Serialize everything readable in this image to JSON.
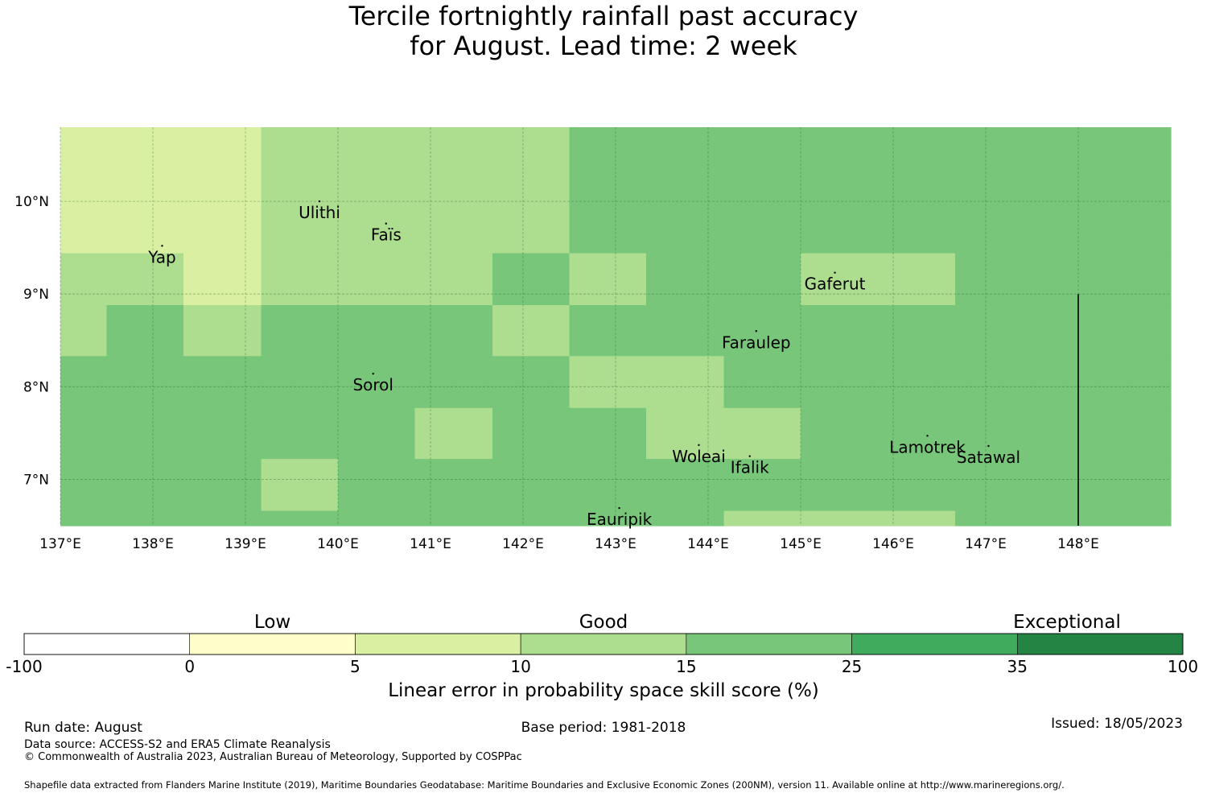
{
  "title_line1": "Tercile fortnightly rainfall past accuracy",
  "title_line2": "for August. Lead time: 2 week",
  "map": {
    "lon_range": [
      137,
      149
    ],
    "lat_range": [
      6.5,
      10.8
    ],
    "lon_ticks": [
      {
        "value": 137,
        "label": "137°E"
      },
      {
        "value": 138,
        "label": "138°E"
      },
      {
        "value": 139,
        "label": "139°E"
      },
      {
        "value": 140,
        "label": "140°E"
      },
      {
        "value": 141,
        "label": "141°E"
      },
      {
        "value": 142,
        "label": "142°E"
      },
      {
        "value": 143,
        "label": "143°E"
      },
      {
        "value": 144,
        "label": "144°E"
      },
      {
        "value": 145,
        "label": "145°E"
      },
      {
        "value": 146,
        "label": "146°E"
      },
      {
        "value": 147,
        "label": "147°E"
      },
      {
        "value": 148,
        "label": "148°E"
      }
    ],
    "lat_ticks": [
      {
        "value": 10,
        "label": "10°N"
      },
      {
        "value": 9,
        "label": "9°N"
      },
      {
        "value": 8,
        "label": "8°N"
      },
      {
        "value": 7,
        "label": "7°N"
      }
    ],
    "grid_lon_edges": [
      137,
      137.5,
      138.33,
      139.17,
      140,
      140.83,
      141.67,
      142.5,
      143.33,
      144.17,
      145,
      145.83,
      146.67,
      147.5,
      148.33,
      149
    ],
    "grid_lat_edges": [
      10.8,
      9.44,
      8.88,
      8.33,
      7.77,
      7.22,
      6.66,
      6.5
    ],
    "grid_note_classes": "0:<0, 1:0-5, 2:5-10, 3:10-15, 4:15-25, 5:25-35, 6:35-100",
    "grid_classes": [
      [
        2,
        2,
        2,
        3,
        3,
        3,
        3,
        4,
        4,
        4,
        4,
        4,
        4,
        4,
        4
      ],
      [
        3,
        3,
        2,
        3,
        3,
        3,
        4,
        3,
        4,
        4,
        3,
        3,
        4,
        4,
        4
      ],
      [
        3,
        4,
        3,
        4,
        4,
        4,
        3,
        4,
        4,
        4,
        4,
        4,
        4,
        4,
        4
      ],
      [
        4,
        4,
        4,
        4,
        4,
        4,
        4,
        3,
        3,
        4,
        4,
        4,
        4,
        4,
        4
      ],
      [
        4,
        4,
        4,
        4,
        4,
        3,
        4,
        4,
        3,
        3,
        4,
        4,
        4,
        4,
        4
      ],
      [
        4,
        4,
        4,
        3,
        4,
        4,
        4,
        4,
        4,
        4,
        4,
        4,
        4,
        4,
        4
      ],
      [
        4,
        4,
        4,
        4,
        4,
        4,
        4,
        4,
        4,
        3,
        3,
        3,
        4,
        4,
        4
      ]
    ],
    "places": [
      {
        "name": "Ulithi",
        "lon": 139.8,
        "lat": 10.0
      },
      {
        "name": "Faïs",
        "lon": 140.52,
        "lat": 9.76
      },
      {
        "name": "Yap",
        "lon": 138.1,
        "lat": 9.52
      },
      {
        "name": "Gaferut",
        "lon": 145.37,
        "lat": 9.23
      },
      {
        "name": "Faraulep",
        "lon": 144.52,
        "lat": 8.6
      },
      {
        "name": "Sorol",
        "lon": 140.38,
        "lat": 8.14
      },
      {
        "name": "Woleai",
        "lon": 143.9,
        "lat": 7.37
      },
      {
        "name": "Ifalik",
        "lon": 144.45,
        "lat": 7.25
      },
      {
        "name": "Lamotrek",
        "lon": 146.37,
        "lat": 7.47
      },
      {
        "name": "Satawal",
        "lon": 147.03,
        "lat": 7.36
      },
      {
        "name": "Eauripik",
        "lon": 143.04,
        "lat": 6.69
      }
    ],
    "boundary_lon": 148.0,
    "boundary_lat_range": [
      6.5,
      9.0
    ]
  },
  "colorbar": {
    "categories": [
      {
        "label": "Low",
        "at": 1.5
      },
      {
        "label": "Good",
        "at": 3.5
      },
      {
        "label": "Exceptional",
        "at": 6.3
      }
    ],
    "bins": [
      {
        "from": "-100",
        "to": "0",
        "color": "#ffffff"
      },
      {
        "from": "0",
        "to": "5",
        "color": "#ffffcc"
      },
      {
        "from": "5",
        "to": "10",
        "color": "#d9f0a3"
      },
      {
        "from": "10",
        "to": "15",
        "color": "#addd8e"
      },
      {
        "from": "15",
        "to": "25",
        "color": "#78c679"
      },
      {
        "from": "25",
        "to": "35",
        "color": "#41ab5d"
      },
      {
        "from": "35",
        "to": "100",
        "color": "#238443"
      }
    ],
    "tick_labels": [
      "-100",
      "0",
      "5",
      "10",
      "15",
      "25",
      "35",
      "100"
    ],
    "title": "Linear error in probability space skill score (%)"
  },
  "footer": {
    "run_date": "Run date: August",
    "base_period": "Base period: 1981-2018",
    "issued": "Issued: 18/05/2023",
    "data_source": "Data source: ACCESS-S2 and ERA5 Climate Reanalysis",
    "copyright": "© Commonwealth of Australia 2023, Australian Bureau of Meteorology, Supported by COSPPac",
    "shapefile": "Shapefile data extracted from Flanders Marine Institute (2019), Maritime Boundaries Geodatabase: Maritime Boundaries and Exclusive Economic Zones (200NM), version 11. Available online at http://www.marineregions.org/."
  }
}
